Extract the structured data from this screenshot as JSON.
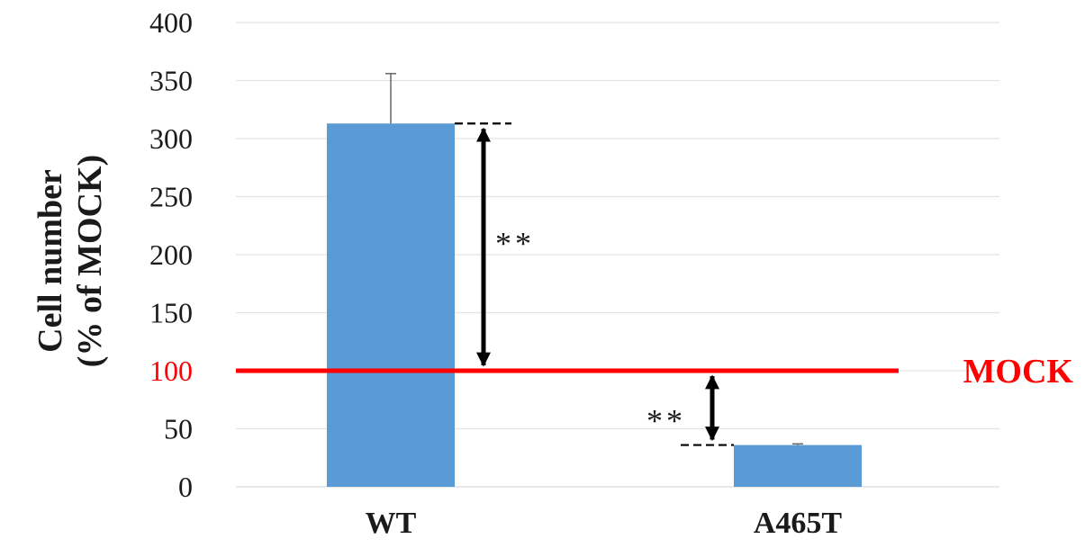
{
  "chart_data": {
    "type": "bar",
    "ylabel_lines": [
      "Cell number",
      "(% of MOCK)"
    ],
    "categories": [
      "WT",
      "A465T"
    ],
    "values": [
      313,
      36
    ],
    "error_plus": [
      43,
      1
    ],
    "ylim": [
      0,
      400
    ],
    "yticks": [
      0,
      50,
      100,
      150,
      200,
      250,
      300,
      350,
      400
    ],
    "grid": true,
    "bar_color": "#5b9bd5",
    "reference_line": {
      "label": "MOCK",
      "value": 100,
      "color": "#ff0000"
    },
    "annotations": [
      {
        "text": "**",
        "category": "WT",
        "from": 313,
        "to": 100
      },
      {
        "text": "**",
        "category": "A465T",
        "from": 100,
        "to": 36
      }
    ]
  }
}
